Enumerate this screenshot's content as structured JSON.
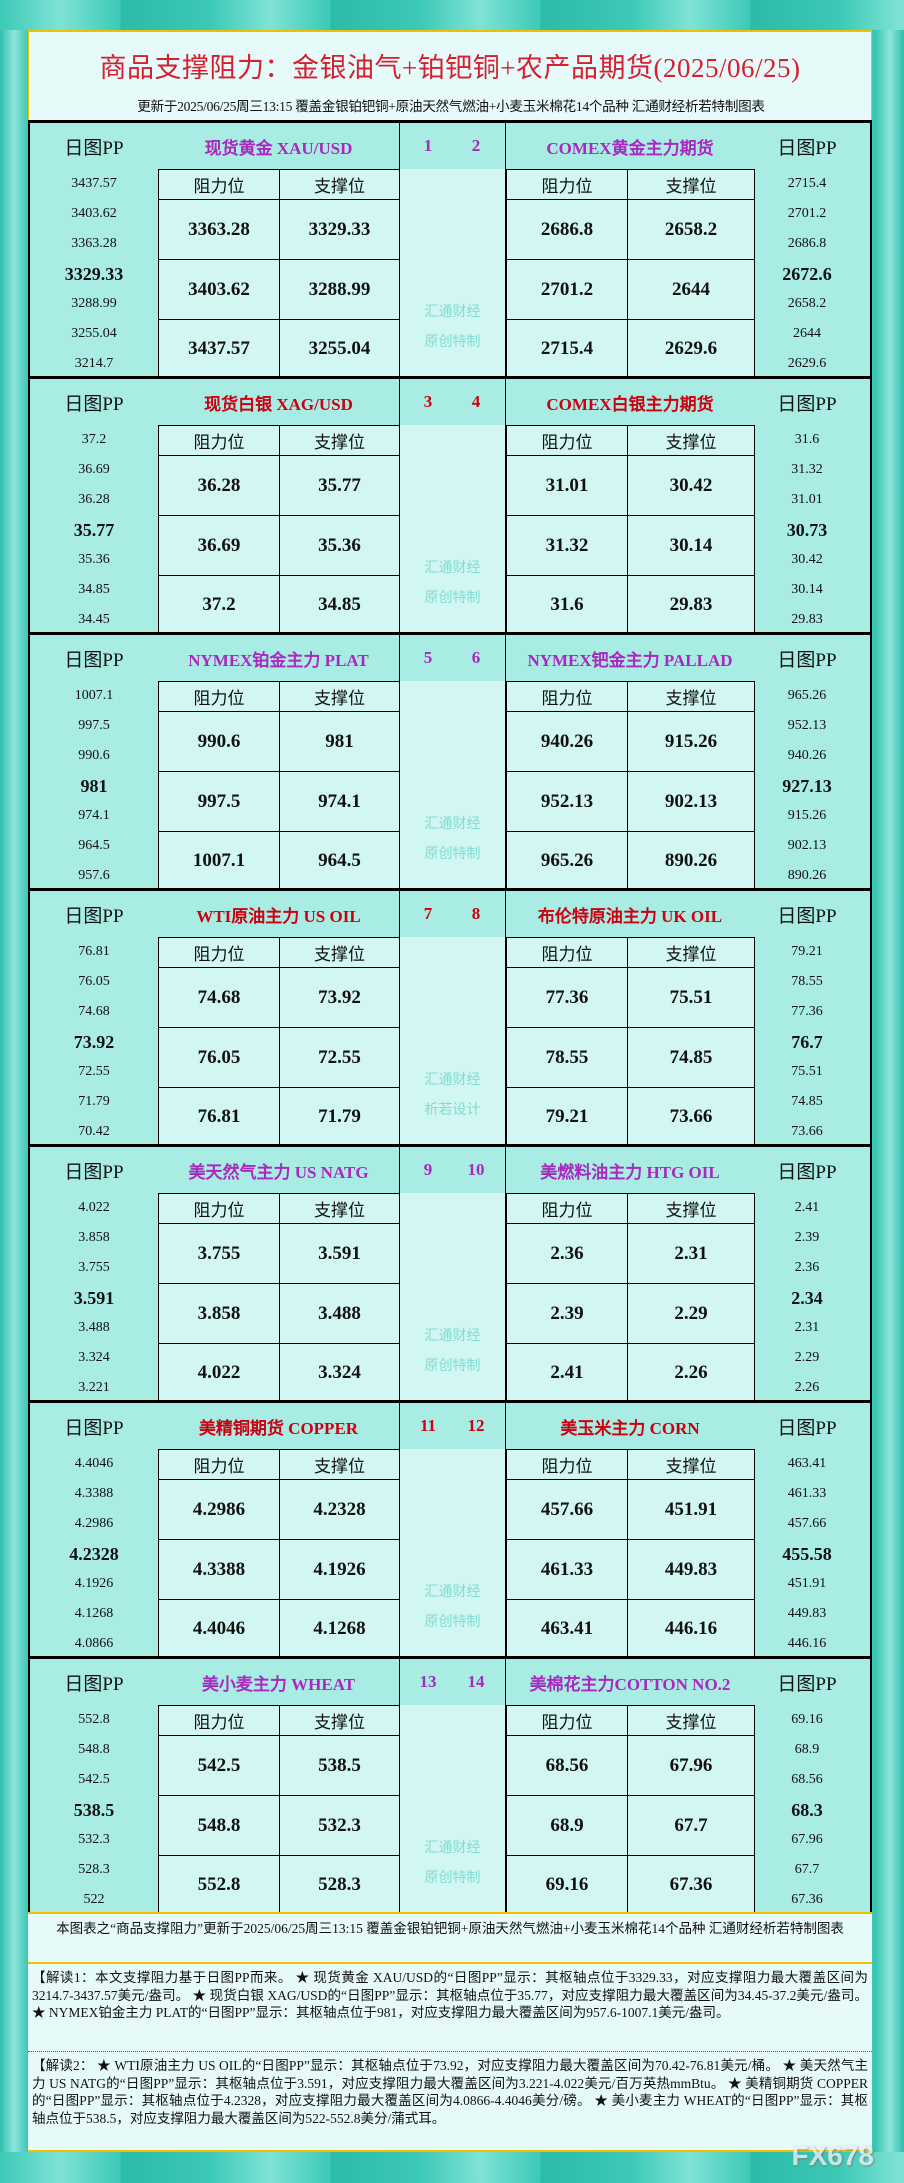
{
  "header": {
    "title": "商品支撑阻力：金银油气+铂钯铜+农产品期货(2025/06/25)",
    "subtitle": "更新于2025/06/25周三13:15  覆盖金银铂钯铜+原油天然气燃油+小麦玉米棉花14个品种  汇通财经析若特制图表"
  },
  "labels": {
    "pp": "日图PP",
    "resist": "阻力位",
    "support": "支撑位"
  },
  "colors": {
    "purple": "#a828c0",
    "red": "#cc0010",
    "frame": "#3cc6b4",
    "watermark": "#7fdcd4"
  },
  "blocks": [
    {
      "nums": [
        "1",
        "2"
      ],
      "color": "#a828c0",
      "watermark": [
        "汇通财经",
        "原创特制"
      ],
      "left": {
        "name": "现货黄金 XAU/USD",
        "pp": [
          "3437.57",
          "3403.62",
          "3363.28",
          "3329.33",
          "3288.99",
          "3255.04",
          "3214.7"
        ],
        "resist": [
          "3363.28",
          "3403.62",
          "3437.57"
        ],
        "support": [
          "3329.33",
          "3288.99",
          "3255.04"
        ]
      },
      "right": {
        "name": "COMEX黄金主力期货",
        "pp": [
          "2715.4",
          "2701.2",
          "2686.8",
          "2672.6",
          "2658.2",
          "2644",
          "2629.6"
        ],
        "resist": [
          "2686.8",
          "2701.2",
          "2715.4"
        ],
        "support": [
          "2658.2",
          "2644",
          "2629.6"
        ]
      }
    },
    {
      "nums": [
        "3",
        "4"
      ],
      "color": "#cc0010",
      "watermark": [
        "汇通财经",
        "原创特制"
      ],
      "left": {
        "name": "现货白银 XAG/USD",
        "pp": [
          "37.2",
          "36.69",
          "36.28",
          "35.77",
          "35.36",
          "34.85",
          "34.45"
        ],
        "resist": [
          "36.28",
          "36.69",
          "37.2"
        ],
        "support": [
          "35.77",
          "35.36",
          "34.85"
        ]
      },
      "right": {
        "name": "COMEX白银主力期货",
        "pp": [
          "31.6",
          "31.32",
          "31.01",
          "30.73",
          "30.42",
          "30.14",
          "29.83"
        ],
        "resist": [
          "31.01",
          "31.32",
          "31.6"
        ],
        "support": [
          "30.42",
          "30.14",
          "29.83"
        ]
      }
    },
    {
      "nums": [
        "5",
        "6"
      ],
      "color": "#a828c0",
      "watermark": [
        "汇通财经",
        "原创特制"
      ],
      "left": {
        "name": "NYMEX铂金主力 PLAT",
        "pp": [
          "1007.1",
          "997.5",
          "990.6",
          "981",
          "974.1",
          "964.5",
          "957.6"
        ],
        "resist": [
          "990.6",
          "997.5",
          "1007.1"
        ],
        "support": [
          "981",
          "974.1",
          "964.5"
        ]
      },
      "right": {
        "name": "NYMEX钯金主力 PALLAD",
        "pp": [
          "965.26",
          "952.13",
          "940.26",
          "927.13",
          "915.26",
          "902.13",
          "890.26"
        ],
        "resist": [
          "940.26",
          "952.13",
          "965.26"
        ],
        "support": [
          "915.26",
          "902.13",
          "890.26"
        ]
      }
    },
    {
      "nums": [
        "7",
        "8"
      ],
      "color": "#cc0010",
      "watermark": [
        "汇通财经",
        "析若设计"
      ],
      "left": {
        "name": "WTI原油主力 US OIL",
        "pp": [
          "76.81",
          "76.05",
          "74.68",
          "73.92",
          "72.55",
          "71.79",
          "70.42"
        ],
        "resist": [
          "74.68",
          "76.05",
          "76.81"
        ],
        "support": [
          "73.92",
          "72.55",
          "71.79"
        ]
      },
      "right": {
        "name": "布伦特原油主力 UK OIL",
        "pp": [
          "79.21",
          "78.55",
          "77.36",
          "76.7",
          "75.51",
          "74.85",
          "73.66"
        ],
        "resist": [
          "77.36",
          "78.55",
          "79.21"
        ],
        "support": [
          "75.51",
          "74.85",
          "73.66"
        ]
      }
    },
    {
      "nums": [
        "9",
        "10"
      ],
      "color": "#a828c0",
      "watermark": [
        "汇通财经",
        "原创特制"
      ],
      "left": {
        "name": "美天然气主力 US NATG",
        "pp": [
          "4.022",
          "3.858",
          "3.755",
          "3.591",
          "3.488",
          "3.324",
          "3.221"
        ],
        "resist": [
          "3.755",
          "3.858",
          "4.022"
        ],
        "support": [
          "3.591",
          "3.488",
          "3.324"
        ]
      },
      "right": {
        "name": "美燃料油主力 HTG OIL",
        "pp": [
          "2.41",
          "2.39",
          "2.36",
          "2.34",
          "2.31",
          "2.29",
          "2.26"
        ],
        "resist": [
          "2.36",
          "2.39",
          "2.41"
        ],
        "support": [
          "2.31",
          "2.29",
          "2.26"
        ]
      }
    },
    {
      "nums": [
        "11",
        "12"
      ],
      "color": "#cc0010",
      "watermark": [
        "汇通财经",
        "原创特制"
      ],
      "left": {
        "name": "美精铜期货 COPPER",
        "pp": [
          "4.4046",
          "4.3388",
          "4.2986",
          "4.2328",
          "4.1926",
          "4.1268",
          "4.0866"
        ],
        "resist": [
          "4.2986",
          "4.3388",
          "4.4046"
        ],
        "support": [
          "4.2328",
          "4.1926",
          "4.1268"
        ]
      },
      "right": {
        "name": "美玉米主力 CORN",
        "pp": [
          "463.41",
          "461.33",
          "457.66",
          "455.58",
          "451.91",
          "449.83",
          "446.16"
        ],
        "resist": [
          "457.66",
          "461.33",
          "463.41"
        ],
        "support": [
          "451.91",
          "449.83",
          "446.16"
        ]
      }
    },
    {
      "nums": [
        "13",
        "14"
      ],
      "color": "#a828c0",
      "watermark": [
        "汇通财经",
        "原创特制"
      ],
      "left": {
        "name": "美小麦主力 WHEAT",
        "pp": [
          "552.8",
          "548.8",
          "542.5",
          "538.5",
          "532.3",
          "528.3",
          "522"
        ],
        "resist": [
          "542.5",
          "548.8",
          "552.8"
        ],
        "support": [
          "538.5",
          "532.3",
          "528.3"
        ]
      },
      "right": {
        "name": "美棉花主力COTTON NO.2",
        "pp": [
          "69.16",
          "68.9",
          "68.56",
          "68.3",
          "67.96",
          "67.7",
          "67.36"
        ],
        "resist": [
          "68.56",
          "68.9",
          "69.16"
        ],
        "support": [
          "67.96",
          "67.7",
          "67.36"
        ]
      }
    }
  ],
  "footer": {
    "note": "本图表之“商品支撑阻力”更新于2025/06/25周三13:15 覆盖金银铂钯铜+原油天然气燃油+小麦玉米棉花14个品种 汇通财经析若特制图表",
    "reading1": "【解读1：本文支撑阻力基于日图PP而来。 ★ 现货黄金 XAU/USD的“日图PP”显示：其枢轴点位于3329.33，对应支撑阻力最大覆盖区间为3214.7-3437.57美元/盎司。 ★ 现货白银 XAG/USD的“日图PP”显示：其枢轴点位于35.77，对应支撑阻力最大覆盖区间为34.45-37.2美元/盎司。 ★ NYMEX铂金主力 PLAT的“日图PP”显示：其枢轴点位于981，对应支撑阻力最大覆盖区间为957.6-1007.1美元/盎司。",
    "reading2": "【解读2： ★ WTI原油主力 US OIL的“日图PP”显示：其枢轴点位于73.92，对应支撑阻力最大覆盖区间为70.42-76.81美元/桶。 ★ 美天然气主力 US NATG的“日图PP”显示：其枢轴点位于3.591，对应支撑阻力最大覆盖区间为3.221-4.022美元/百万英热mmBtu。 ★ 美精铜期货 COPPER的“日图PP”显示：其枢轴点位于4.2328，对应支撑阻力最大覆盖区间为4.0866-4.4046美分/磅。 ★ 美小麦主力 WHEAT的“日图PP”显示：其枢轴点位于538.5，对应支撑阻力最大覆盖区间为522-552.8美分/蒲式耳。",
    "logo": "FX678"
  }
}
